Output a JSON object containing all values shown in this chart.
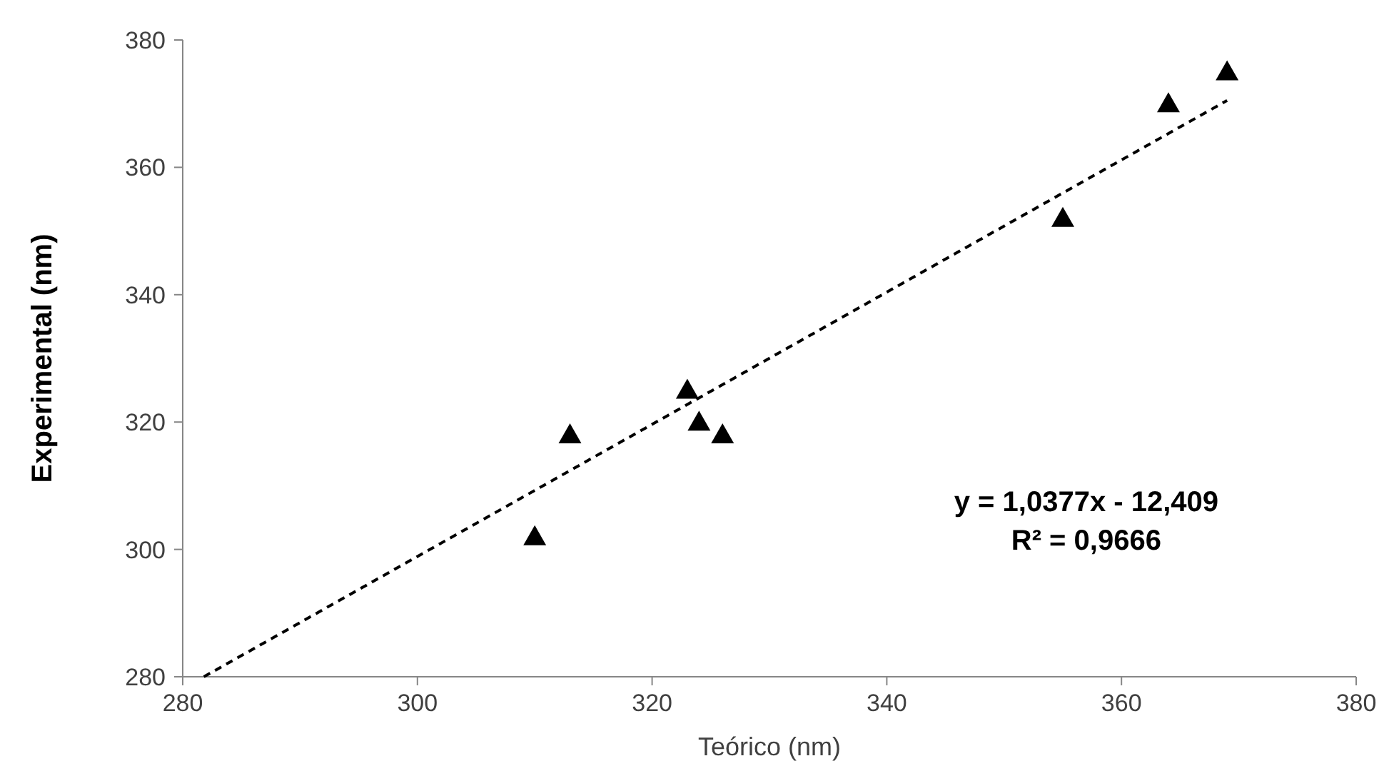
{
  "chart_data": {
    "type": "scatter",
    "xlabel": "Teórico (nm)",
    "ylabel": "Experimental (nm)",
    "xlim": [
      280,
      380
    ],
    "xticks": [
      280,
      300,
      320,
      340,
      360,
      380
    ],
    "ylim": [
      280,
      380
    ],
    "yticks": [
      280,
      300,
      320,
      340,
      360,
      380
    ],
    "marker": "triangle",
    "grid": false,
    "series": [
      {
        "color": "#000000",
        "x": [
          310,
          313,
          323,
          324,
          326,
          355,
          364,
          369
        ],
        "values": [
          302,
          318,
          325,
          320,
          318,
          352,
          370,
          375
        ]
      },
      {
        "type": "line",
        "color": "#000000",
        "line_style": "dashed",
        "marker": "none",
        "x": [
          281.8,
          369
        ],
        "values": [
          280,
          370.5
        ]
      }
    ],
    "annotations": [
      "y = 1,0377x - 12,409",
      "R² = 0,9666"
    ]
  }
}
